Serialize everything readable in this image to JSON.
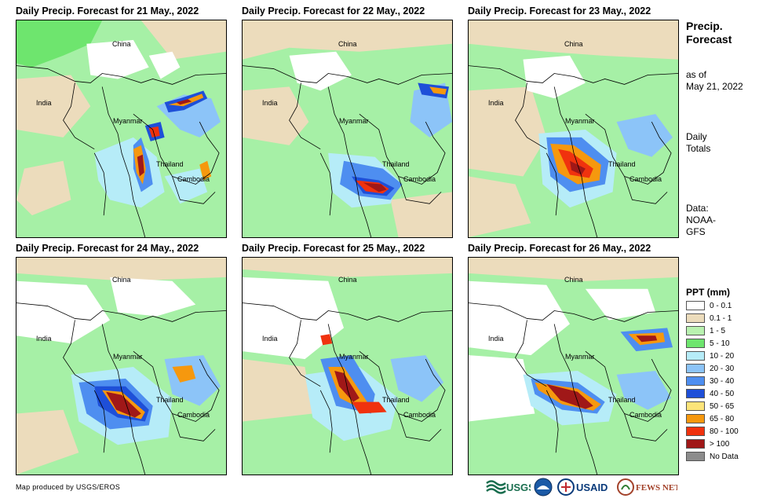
{
  "panels": [
    {
      "title": "Daily Precip. Forecast for 21 May., 2022",
      "labels": {
        "china": "China",
        "india": "India",
        "myanmar": "Myanmar",
        "thailand": "Thailand",
        "cambodia": "Cambodia"
      }
    },
    {
      "title": "Daily Precip. Forecast for 22 May., 2022",
      "labels": {
        "china": "China",
        "india": "India",
        "myanmar": "Myanmar",
        "thailand": "Thailand",
        "cambodia": "Cambodia"
      }
    },
    {
      "title": "Daily Precip. Forecast for 23 May., 2022",
      "labels": {
        "china": "China",
        "india": "India",
        "myanmar": "Myanmar",
        "thailand": "Thailand",
        "cambodia": "Cambodia"
      }
    },
    {
      "title": "Daily Precip. Forecast for 24 May., 2022",
      "labels": {
        "china": "China",
        "india": "India",
        "myanmar": "Myanmar",
        "thailand": "Thailand",
        "cambodia": "Cambodia"
      }
    },
    {
      "title": "Daily Precip. Forecast for 25 May., 2022",
      "labels": {
        "china": "China",
        "india": "India",
        "myanmar": "Myanmar",
        "thailand": "Thailand",
        "cambodia": "Cambodia"
      }
    },
    {
      "title": "Daily Precip. Forecast for 26 May., 2022",
      "labels": {
        "china": "China",
        "india": "India",
        "myanmar": "Myanmar",
        "thailand": "Thailand",
        "cambodia": "Cambodia"
      }
    }
  ],
  "sidebar": {
    "heading_line1": "Precip.",
    "heading_line2": "Forecast",
    "asof_line1": "as of",
    "asof_line2": "May 21, 2022",
    "totals_line1": "Daily",
    "totals_line2": "Totals",
    "data_line1": "Data:",
    "data_line2": "NOAA-",
    "data_line3": "GFS"
  },
  "legend": {
    "title": "PPT (mm)",
    "items": [
      {
        "label": "0 - 0.1",
        "color": "#ffffff"
      },
      {
        "label": "0.1 - 1",
        "color": "#ecdcbc"
      },
      {
        "label": "1 - 5",
        "color": "#b9f2b0"
      },
      {
        "label": "5 - 10",
        "color": "#6ee56e"
      },
      {
        "label": "10 - 20",
        "color": "#b6ecf8"
      },
      {
        "label": "20 - 30",
        "color": "#8cc4f8"
      },
      {
        "label": "30 - 40",
        "color": "#4e8ef0"
      },
      {
        "label": "40 - 50",
        "color": "#1e4fd8"
      },
      {
        "label": "50 - 65",
        "color": "#fce479"
      },
      {
        "label": "65 - 80",
        "color": "#f6980e"
      },
      {
        "label": "80 - 100",
        "color": "#f0320e"
      },
      {
        "label": "> 100",
        "color": "#a01818"
      },
      {
        "label": "No Data",
        "color": "#8c8c8c"
      }
    ]
  },
  "credit": "Map produced by USGS/EROS",
  "logos": {
    "usgs": "USGS",
    "usaid": "USAID",
    "fewsnet": "FEWS NET"
  }
}
